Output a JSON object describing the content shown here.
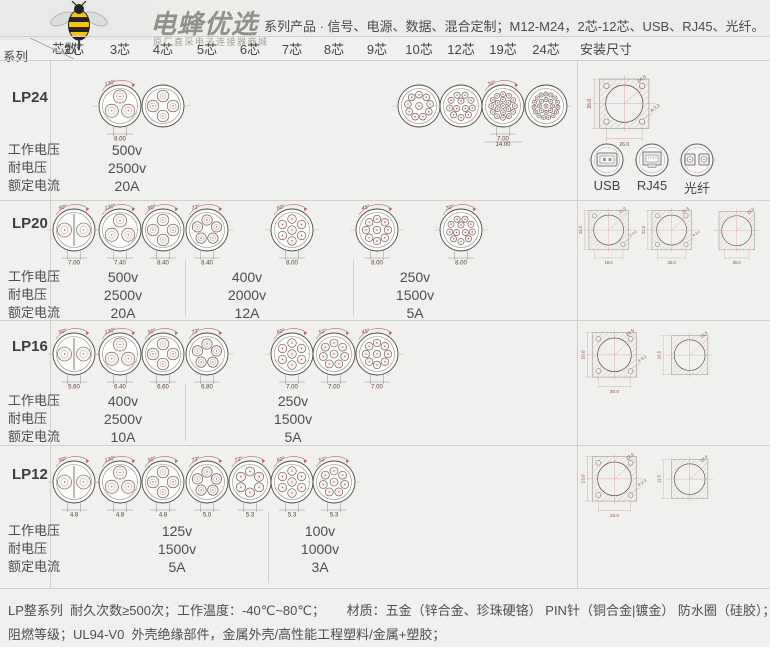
{
  "brand": {
    "name": "电蜂优选",
    "subtitle": "原厂直采电子连接器商城",
    "logo": "bee-icon"
  },
  "title": "系列产品 · 信号、电源、数据、混合定制；M12-M24，2芯-12芯、USB、RJ45、光纤。",
  "colors": {
    "background": "#f0f0ee",
    "bee_yellow": "#f2c21d",
    "drawing_red": "#c0504d",
    "dim_label": "#8a4545",
    "text": "#4a4a4a"
  },
  "table": {
    "corner_top": "芯数",
    "corner_bottom": "系列",
    "columns": [
      "2芯",
      "3芯",
      "4芯",
      "5芯",
      "6芯",
      "7芯",
      "8芯",
      "9芯",
      "10芯",
      "12芯",
      "19芯",
      "24芯"
    ],
    "install_header": "安装尺寸",
    "spec_labels": [
      "工作电压",
      "耐电压",
      "额定电流"
    ]
  },
  "series": [
    {
      "name": "LP24",
      "connectors": [
        {
          "col": "3芯",
          "pins": 3,
          "angle": "120°",
          "dims": [
            "8.00"
          ]
        },
        {
          "col": "4芯",
          "pins": 4,
          "angle": "",
          "dims": []
        },
        {
          "col": "10芯",
          "pins": 10,
          "angle": "",
          "dims": []
        },
        {
          "col": "12芯",
          "pins": 12,
          "angle": "",
          "dims": []
        },
        {
          "col": "19芯",
          "pins": 19,
          "angle": "30°",
          "dims": [
            "7.00",
            "14.00"
          ]
        },
        {
          "col": "24芯",
          "pins": 24,
          "angle": "",
          "dims": []
        }
      ],
      "ratings": [
        {
          "working": "500v",
          "withstand": "2500v",
          "current": "20A"
        }
      ],
      "ports": [
        "USB",
        "RJ45",
        "光纤"
      ],
      "mounts": [
        {
          "style": "plate4",
          "width": "26.0",
          "height": "26.0",
          "cutout": "24.0",
          "holes": "4-3.2"
        }
      ]
    },
    {
      "name": "LP20",
      "connectors": [
        {
          "col": "2芯",
          "pins": 2,
          "angle": "90°",
          "dims": [
            "7.00"
          ]
        },
        {
          "col": "3芯",
          "pins": 3,
          "angle": "120°",
          "dims": [
            "7.40"
          ]
        },
        {
          "col": "4芯",
          "pins": 4,
          "angle": "90°",
          "dims": [
            "8.40"
          ]
        },
        {
          "col": "5芯",
          "pins": 5,
          "angle": "72°",
          "dims": [
            "8.40"
          ]
        },
        {
          "col": "7芯",
          "pins": 7,
          "angle": "60°",
          "dims": [
            "8.00"
          ]
        },
        {
          "col": "9芯",
          "pins": 9,
          "angle": "45°",
          "dims": [
            "8.00"
          ]
        },
        {
          "col": "12芯",
          "pins": 12,
          "angle": "30°",
          "dims": [
            "8.00"
          ]
        }
      ],
      "ratings": [
        {
          "working": "500v",
          "withstand": "2500v",
          "current": "20A"
        },
        {
          "working": "400v",
          "withstand": "2000v",
          "current": "12A"
        },
        {
          "working": "250v",
          "withstand": "1500v",
          "current": "5A"
        }
      ],
      "mounts": [
        {
          "style": "plate2",
          "width": "19.0",
          "height": "24.0",
          "cutout": "21.0",
          "holes": "2-3.2"
        },
        {
          "style": "plate4",
          "width": "22.0",
          "height": "22.0",
          "cutout": "21.9",
          "holes": "4-3.2"
        },
        {
          "style": "dcut",
          "width": "20.0",
          "cutout": "22.5"
        }
      ]
    },
    {
      "name": "LP16",
      "connectors": [
        {
          "col": "2芯",
          "pins": 2,
          "angle": "90°",
          "dims": [
            "5.60"
          ]
        },
        {
          "col": "3芯",
          "pins": 3,
          "angle": "120°",
          "dims": [
            "6.40"
          ]
        },
        {
          "col": "4芯",
          "pins": 4,
          "angle": "90°",
          "dims": [
            "6.60"
          ]
        },
        {
          "col": "5芯",
          "pins": 5,
          "angle": "72°",
          "dims": [
            "6.80"
          ]
        },
        {
          "col": "7芯",
          "pins": 7,
          "angle": "60°",
          "dims": [
            "7.00"
          ]
        },
        {
          "col": "8芯",
          "pins": 8,
          "angle": "51°",
          "dims": [
            "7.00"
          ]
        },
        {
          "col": "9芯",
          "pins": 9,
          "angle": "45°",
          "dims": [
            "7.00"
          ]
        }
      ],
      "ratings": [
        {
          "working": "400v",
          "withstand": "2500v",
          "current": "10A"
        },
        {
          "working": "250v",
          "withstand": "1500v",
          "current": "5A"
        }
      ],
      "mounts": [
        {
          "style": "plate4",
          "width": "20.0",
          "height": "20.0",
          "cutout": "20.5",
          "holes": "4-3.2"
        },
        {
          "style": "dcut",
          "height": "16.5",
          "cutout": "16.5"
        }
      ]
    },
    {
      "name": "LP12",
      "connectors": [
        {
          "col": "2芯",
          "pins": 2,
          "angle": "90°",
          "dims": [
            "4.8"
          ]
        },
        {
          "col": "3芯",
          "pins": 3,
          "angle": "120°",
          "dims": [
            "4.8"
          ]
        },
        {
          "col": "4芯",
          "pins": 4,
          "angle": "90°",
          "dims": [
            "4.8"
          ]
        },
        {
          "col": "5芯",
          "pins": 5,
          "angle": "72°",
          "dims": [
            "5.0"
          ]
        },
        {
          "col": "6芯",
          "pins": 6,
          "angle": "72°",
          "dims": [
            "5.3"
          ]
        },
        {
          "col": "7芯",
          "pins": 7,
          "angle": "60°",
          "dims": [
            "5.3"
          ]
        },
        {
          "col": "8芯",
          "pins": 8,
          "angle": "51°",
          "dims": [
            "5.3"
          ]
        }
      ],
      "ratings": [
        {
          "working": "125v",
          "withstand": "1500v",
          "current": "5A"
        },
        {
          "working": "100v",
          "withstand": "1000v",
          "current": "3A"
        }
      ],
      "mounts": [
        {
          "style": "plate4",
          "width": "13.0",
          "height": "13.0",
          "cutout": "12.0",
          "holes": "4-2.3"
        },
        {
          "style": "dcut",
          "height": "11.5",
          "cutout": "12.0"
        }
      ]
    }
  ],
  "footer": {
    "line1": "LP整系列  耐久次数≥500次；工作温度：-40℃~80℃；      材质：五金（锌合金、珍珠硬铬） PIN针（铜合金|镀金） 防水圈（硅胶）；",
    "line2": "阻燃等级；UL94-V0  外壳绝缘部件，金属外壳/高性能工程塑料/金属+塑胶；"
  }
}
